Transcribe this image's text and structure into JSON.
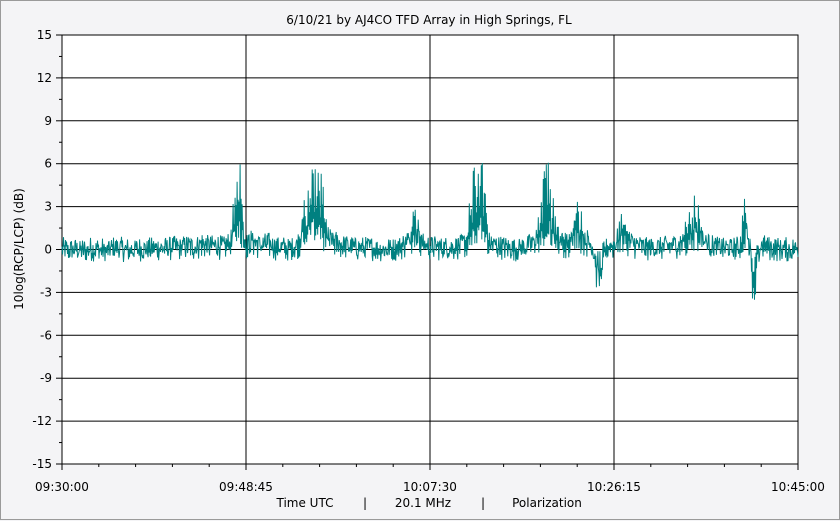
{
  "chart_data": {
    "type": "line",
    "title": "6/10/21  by  AJ4CO TFD Array  in  High Springs, FL",
    "ylabel": "10log(RCP/LCP) (dB)",
    "xlabel_parts": [
      "Time UTC",
      "|",
      "20.1 MHz",
      "|",
      "Polarization"
    ],
    "ylim": [
      -15,
      15
    ],
    "yticks": [
      "15",
      "12",
      "9",
      "6",
      "3",
      "0",
      "-3",
      "-6",
      "-9",
      "-12",
      "-15"
    ],
    "xticks": [
      "09:30:00",
      "09:48:45",
      "10:07:30",
      "10:26:15",
      "10:45:00"
    ],
    "grid": true,
    "series_color": "#008080",
    "series": [
      {
        "values": [
          0.0,
          -0.2,
          0.1,
          -0.3,
          0.2,
          0.0,
          -0.4,
          0.3,
          0.1,
          -0.2,
          0.0,
          0.2,
          -0.1,
          0.4,
          0.2,
          0.5,
          0.3,
          0.8,
          0.4,
          1.2,
          0.6,
          0.9,
          0.5,
          1.5,
          7.7,
          0.8,
          1.8,
          0.7,
          1.2,
          0.5,
          0.4,
          0.2,
          1.0,
          3.5,
          6.5,
          5.8,
          2.0,
          1.5,
          0.9,
          0.6,
          0.3,
          0.2,
          0.4,
          0.1,
          0.0,
          0.3,
          0.5,
          1.8,
          3.8,
          1.0,
          0.6,
          0.5,
          0.3,
          0.4,
          0.6,
          1.5,
          5.5,
          7.7,
          1.2,
          0.8,
          0.5,
          0.3,
          0.2,
          0.6,
          1.2,
          3.0,
          7.2,
          2.5,
          1.5,
          1.0,
          3.5,
          2.0,
          0.8,
          -4.5,
          0.5,
          0.8,
          2.8,
          1.6,
          0.9,
          0.5,
          0.3,
          0.4,
          0.6,
          0.8,
          1.2,
          2.5,
          4.2,
          2.0,
          0.9,
          0.5,
          0.3,
          0.2,
          0.4,
          4.5,
          -4.8,
          1.0,
          0.4,
          0.2,
          0.1,
          -0.1,
          0.2
        ]
      }
    ]
  }
}
